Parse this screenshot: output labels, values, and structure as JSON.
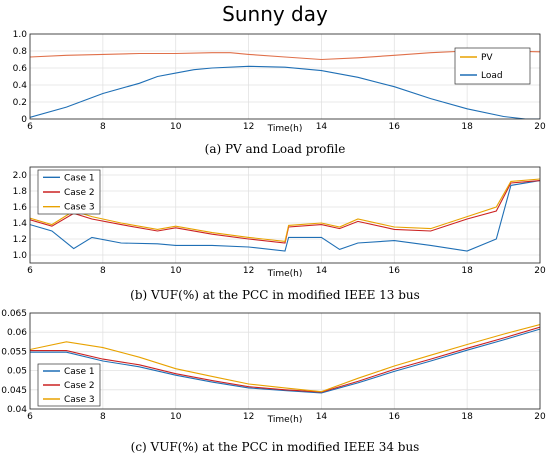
{
  "figure_title": "Sunny day",
  "colors": {
    "blue": "#1f6fb5",
    "orange": "#e8a200",
    "red": "#cc2222",
    "pv_curve": "#e0704a"
  },
  "chart_data": [
    {
      "type": "line",
      "caption": "(a) PV and Load profile",
      "xlabel": "Time(h)",
      "ylabel": "",
      "xlim": [
        6,
        20
      ],
      "ylim": [
        0,
        1.0
      ],
      "xticks": [
        6,
        8,
        10,
        12,
        14,
        16,
        18,
        20
      ],
      "yticks": [
        0,
        0.2,
        0.4,
        0.6,
        0.8,
        1.0
      ],
      "ytick_labels": [
        "0",
        "0.2",
        "0.4",
        "0.6",
        "0.8",
        "1.0"
      ],
      "grid": true,
      "legend": "right",
      "series": [
        {
          "name": "PV",
          "color": "#e8a200",
          "line_color": "#e0704a",
          "x": [
            6,
            7,
            8,
            9,
            10,
            11,
            11.5,
            12,
            13,
            14,
            15,
            16,
            17,
            18,
            19,
            20
          ],
          "y": [
            0.73,
            0.75,
            0.76,
            0.77,
            0.77,
            0.78,
            0.78,
            0.76,
            0.73,
            0.7,
            0.72,
            0.75,
            0.78,
            0.8,
            0.8,
            0.79
          ]
        },
        {
          "name": "Load",
          "color": "#1f6fb5",
          "x": [
            6,
            7,
            8,
            9,
            9.5,
            10,
            10.5,
            11,
            12,
            13,
            14,
            15,
            16,
            17,
            18,
            19,
            19.6,
            20
          ],
          "y": [
            0.02,
            0.14,
            0.3,
            0.42,
            0.5,
            0.54,
            0.58,
            0.6,
            0.62,
            0.61,
            0.57,
            0.49,
            0.38,
            0.24,
            0.12,
            0.03,
            0.0,
            0.0
          ]
        }
      ]
    },
    {
      "type": "line",
      "caption": "(b) VUF(%) at the PCC in modified IEEE 13 bus",
      "xlabel": "Time(h)",
      "ylabel": "",
      "xlim": [
        6,
        20
      ],
      "ylim": [
        0.9,
        2.1
      ],
      "xticks": [
        6,
        8,
        10,
        12,
        14,
        16,
        18,
        20
      ],
      "yticks": [
        1.0,
        1.2,
        1.4,
        1.6,
        1.8,
        2.0
      ],
      "ytick_labels": [
        "1.0",
        "1.2",
        "1.4",
        "1.6",
        "1.8",
        "2.0"
      ],
      "grid": true,
      "legend": "top-left",
      "series": [
        {
          "name": "Case 1",
          "color": "#1f6fb5",
          "x": [
            6,
            6.6,
            7.2,
            7.7,
            8.5,
            9.5,
            10,
            11,
            12,
            13,
            13.1,
            14,
            14.5,
            15,
            16,
            17,
            18,
            18.8,
            19.2,
            20
          ],
          "y": [
            1.38,
            1.3,
            1.08,
            1.22,
            1.15,
            1.14,
            1.12,
            1.12,
            1.1,
            1.05,
            1.22,
            1.22,
            1.07,
            1.15,
            1.18,
            1.12,
            1.05,
            1.2,
            1.87,
            1.93
          ]
        },
        {
          "name": "Case 2",
          "color": "#cc2222",
          "x": [
            6,
            6.6,
            7.2,
            7.7,
            8.5,
            9.5,
            10,
            11,
            12,
            13,
            13.1,
            14,
            14.5,
            15,
            16,
            17,
            18,
            18.8,
            19.2,
            20
          ],
          "y": [
            1.44,
            1.36,
            1.52,
            1.45,
            1.38,
            1.3,
            1.34,
            1.26,
            1.2,
            1.15,
            1.35,
            1.38,
            1.33,
            1.42,
            1.32,
            1.3,
            1.45,
            1.55,
            1.9,
            1.93
          ]
        },
        {
          "name": "Case 3",
          "color": "#e8a200",
          "x": [
            6,
            6.6,
            7.2,
            7.7,
            8.5,
            9.5,
            10,
            11,
            12,
            13,
            13.1,
            14,
            14.5,
            15,
            16,
            17,
            18,
            18.8,
            19.2,
            20
          ],
          "y": [
            1.46,
            1.38,
            1.55,
            1.48,
            1.4,
            1.32,
            1.36,
            1.28,
            1.22,
            1.17,
            1.37,
            1.4,
            1.35,
            1.45,
            1.35,
            1.33,
            1.48,
            1.6,
            1.92,
            1.95
          ]
        }
      ]
    },
    {
      "type": "line",
      "caption": "(c) VUF(%) at the PCC in modified IEEE 34 bus",
      "xlabel": "Time(h)",
      "ylabel": "",
      "xlim": [
        6,
        20
      ],
      "ylim": [
        0.04,
        0.065
      ],
      "xticks": [
        6,
        8,
        10,
        12,
        14,
        16,
        18,
        20
      ],
      "yticks": [
        0.04,
        0.045,
        0.05,
        0.055,
        0.06,
        0.065
      ],
      "ytick_labels": [
        "0.04",
        "0.045",
        "0.05",
        "0.055",
        "0.06",
        "0.065"
      ],
      "grid": true,
      "legend": "bottom-left",
      "series": [
        {
          "name": "Case 1",
          "color": "#1f6fb5",
          "x": [
            6,
            7,
            8,
            9,
            10,
            11,
            12,
            13,
            14,
            15,
            16,
            17,
            18,
            19,
            20
          ],
          "y": [
            0.0548,
            0.0548,
            0.0525,
            0.051,
            0.0488,
            0.047,
            0.0455,
            0.0448,
            0.0442,
            0.0468,
            0.0498,
            0.0525,
            0.0553,
            0.058,
            0.0608
          ]
        },
        {
          "name": "Case 2",
          "color": "#cc2222",
          "x": [
            6,
            7,
            8,
            9,
            10,
            11,
            12,
            13,
            14,
            15,
            16,
            17,
            18,
            19,
            20
          ],
          "y": [
            0.0552,
            0.0552,
            0.053,
            0.0515,
            0.0492,
            0.0474,
            0.0458,
            0.045,
            0.0444,
            0.0472,
            0.0503,
            0.053,
            0.0558,
            0.0585,
            0.0613
          ]
        },
        {
          "name": "Case 3",
          "color": "#e8a200",
          "x": [
            6,
            7,
            8,
            9,
            10,
            11,
            12,
            13,
            14,
            15,
            16,
            17,
            18,
            19,
            20
          ],
          "y": [
            0.0555,
            0.0575,
            0.056,
            0.0535,
            0.0505,
            0.0485,
            0.0465,
            0.0455,
            0.0445,
            0.048,
            0.0512,
            0.054,
            0.0568,
            0.0595,
            0.062
          ]
        }
      ]
    }
  ]
}
